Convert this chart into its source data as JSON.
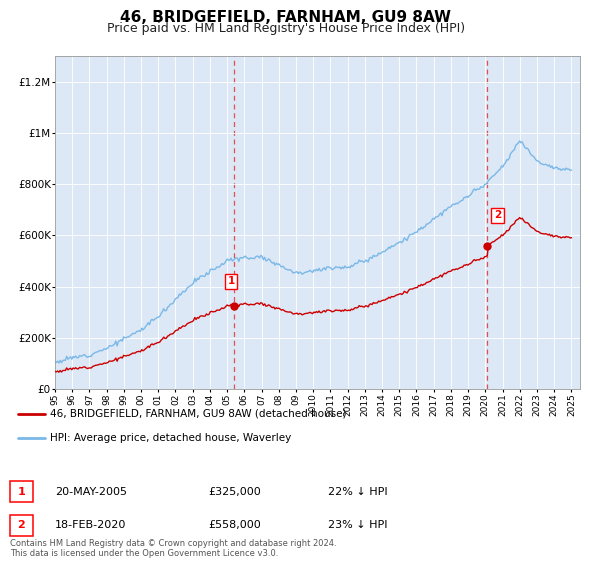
{
  "title": "46, BRIDGEFIELD, FARNHAM, GU9 8AW",
  "subtitle": "Price paid vs. HM Land Registry's House Price Index (HPI)",
  "title_fontsize": 11,
  "subtitle_fontsize": 9,
  "bg_color": "#dce8f5",
  "fig_color": "#ffffff",
  "hpi_color": "#7ab8e8",
  "price_color": "#cc0000",
  "ylim": [
    0,
    1300000
  ],
  "yticks": [
    0,
    200000,
    400000,
    600000,
    800000,
    1000000,
    1200000
  ],
  "ytick_labels": [
    "£0",
    "£200K",
    "£400K",
    "£600K",
    "£800K",
    "£1M",
    "£1.2M"
  ],
  "sale1_year": 2005.38,
  "sale1_price": 325000,
  "sale2_year": 2020.12,
  "sale2_price": 558000,
  "legend1_label": "46, BRIDGEFIELD, FARNHAM, GU9 8AW (detached house)",
  "legend2_label": "HPI: Average price, detached house, Waverley",
  "sale1_date": "20-MAY-2005",
  "sale1_hpi_pct": "22% ↓ HPI",
  "sale2_date": "18-FEB-2020",
  "sale2_hpi_pct": "23% ↓ HPI",
  "footnote": "Contains HM Land Registry data © Crown copyright and database right 2024.\nThis data is licensed under the Open Government Licence v3.0."
}
